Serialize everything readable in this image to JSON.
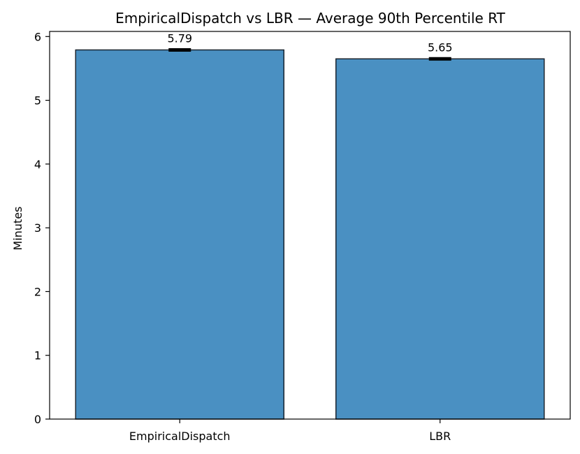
{
  "chart_data": {
    "type": "bar",
    "title": "EmpiricalDispatch vs LBR — Average 90th Percentile RT",
    "xlabel": "",
    "ylabel": "Minutes",
    "categories": [
      "EmpiricalDispatch",
      "LBR"
    ],
    "values": [
      5.79,
      5.65
    ],
    "error": [
      0.02,
      0.02
    ],
    "data_labels": [
      "5.79",
      "5.65"
    ],
    "ylim": [
      0,
      6.08
    ],
    "yticks": [
      0,
      1,
      2,
      3,
      4,
      5,
      6
    ],
    "grid": false,
    "legend": "none",
    "colors": {
      "bar_fill": "#4a90c2",
      "bar_edge": "#1a2530",
      "error_bar": "#000000",
      "axis": "#000000"
    }
  }
}
